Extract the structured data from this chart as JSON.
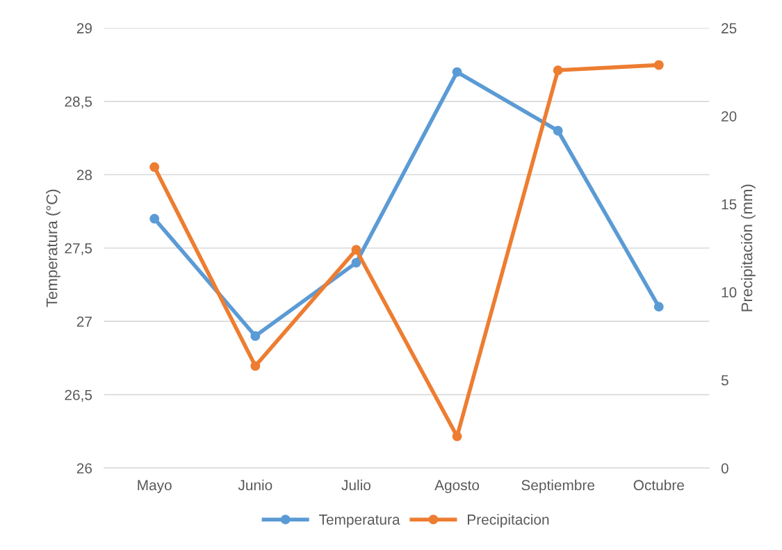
{
  "chart_data": {
    "type": "line",
    "ylabel": "Temperatura (°C)",
    "y2label": "Precipitación (mm)",
    "categories": [
      "Mayo",
      "Junio",
      "Julio",
      "Agosto",
      "Septiembre",
      "Octubre"
    ],
    "series": [
      {
        "name": "Temperatura",
        "color": "#5b9bd5",
        "values": [
          27.7,
          26.9,
          27.4,
          28.7,
          28.3,
          27.1
        ]
      },
      {
        "name": "Precipitacion",
        "color": "#ed7d31",
        "axis": "y2",
        "values": [
          17.1,
          5.8,
          12.4,
          1.8,
          22.6,
          22.9
        ]
      }
    ],
    "ylim": [
      26,
      29
    ],
    "yticks": [
      26,
      {
        "value": 26.5,
        "label": "26,5"
      },
      27,
      {
        "value": 27.5,
        "label": "27,5"
      },
      28,
      {
        "value": 28.5,
        "label": "28,5"
      },
      29
    ],
    "y2lim": [
      0,
      25
    ],
    "y2ticks": [
      0,
      5,
      10,
      15,
      20,
      25
    ],
    "grid": "y",
    "legend": "bottom",
    "marker": "circle",
    "line_style": "solid"
  }
}
